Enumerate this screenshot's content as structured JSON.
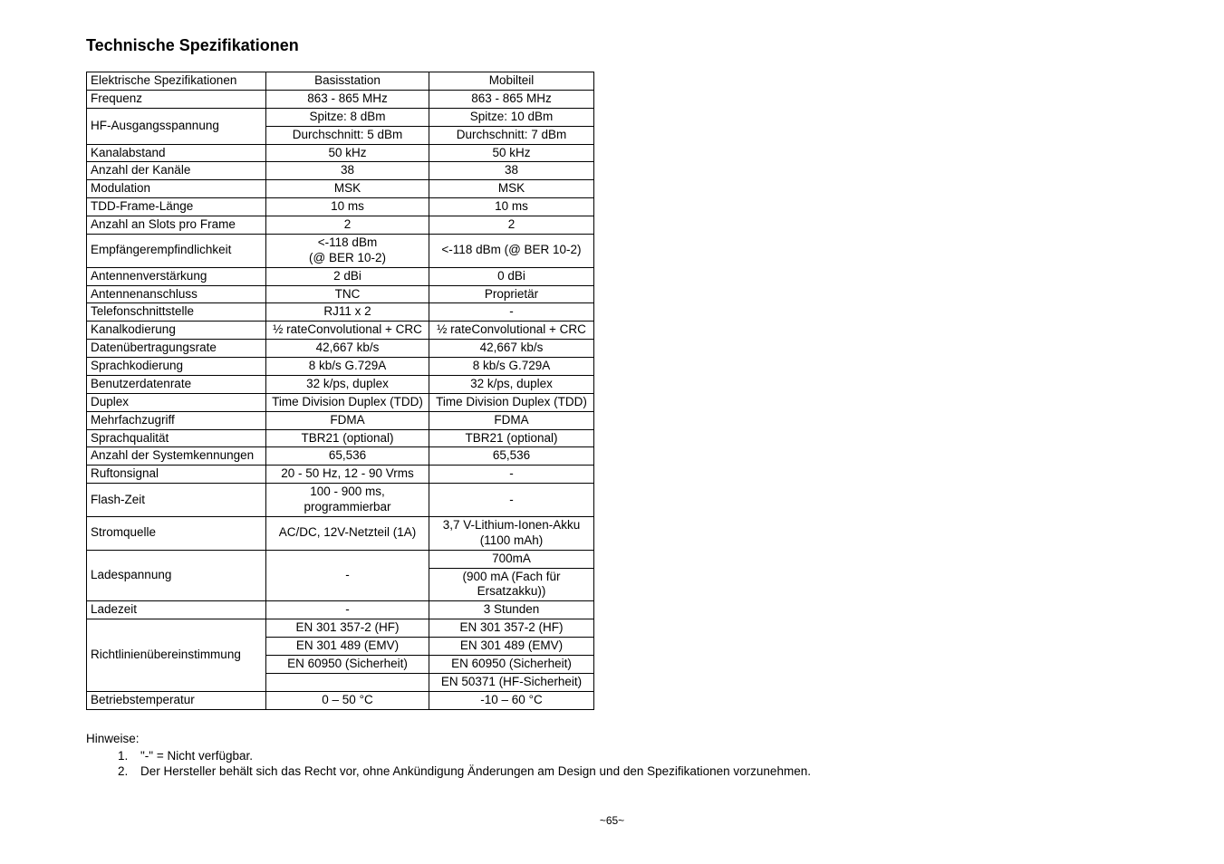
{
  "title": "Technische Spezifikationen",
  "table": {
    "header": [
      "Elektrische Spezifikationen",
      "Basisstation",
      "Mobilteil"
    ],
    "rows": [
      {
        "label": "Frequenz",
        "base": "863 - 865 MHz",
        "mobile": "863 - 865 MHz"
      },
      {
        "label": "HF-Ausgangsspannung",
        "rowspan": 2,
        "base": "Spitze: 8 dBm",
        "mobile": "Spitze: 10 dBm"
      },
      {
        "base": "Durchschnitt: 5 dBm",
        "mobile": "Durchschnitt: 7 dBm"
      },
      {
        "label": "Kanalabstand",
        "base": "50 kHz",
        "mobile": "50 kHz"
      },
      {
        "label": "Anzahl der Kanäle",
        "base": "38",
        "mobile": "38"
      },
      {
        "label": "Modulation",
        "base": "MSK",
        "mobile": "MSK"
      },
      {
        "label": "TDD-Frame-Länge",
        "base": "10 ms",
        "mobile": "10 ms"
      },
      {
        "label": "Anzahl an Slots pro Frame",
        "base": "2",
        "mobile": "2"
      },
      {
        "label": "Empfängerempfindlichkeit",
        "base": "<-118 dBm\n(@ BER 10-2)",
        "mobile": "<-118 dBm (@ BER 10-2)"
      },
      {
        "label": "Antennenverstärkung",
        "base": "2 dBi",
        "mobile": "0 dBi"
      },
      {
        "label": "Antennenanschluss",
        "base": "TNC",
        "mobile": "Proprietär"
      },
      {
        "label": "Telefonschnittstelle",
        "base": "RJ11 x 2",
        "mobile": "-"
      },
      {
        "label": "Kanalkodierung",
        "base": "½ rateConvolutional + CRC",
        "mobile": "½ rateConvolutional + CRC"
      },
      {
        "label": "Datenübertragungsrate",
        "base": "42,667 kb/s",
        "mobile": "42,667 kb/s"
      },
      {
        "label": "Sprachkodierung",
        "base": "8 kb/s G.729A",
        "mobile": "8 kb/s G.729A"
      },
      {
        "label": "Benutzerdatenrate",
        "base": "32 k/ps, duplex",
        "mobile": "32 k/ps, duplex"
      },
      {
        "label": "Duplex",
        "base": "Time Division Duplex (TDD)",
        "mobile": "Time Division Duplex (TDD)"
      },
      {
        "label": "Mehrfachzugriff",
        "base": "FDMA",
        "mobile": "FDMA"
      },
      {
        "label": "Sprachqualität",
        "base": "TBR21 (optional)",
        "mobile": "TBR21 (optional)"
      },
      {
        "label": "Anzahl der Systemkennungen",
        "base": "65,536",
        "mobile": "65,536"
      },
      {
        "label": "Ruftonsignal",
        "base": "20 - 50 Hz, 12 - 90 Vrms",
        "mobile": "-"
      },
      {
        "label": "Flash-Zeit",
        "base": "100 - 900 ms, programmierbar",
        "mobile": "-"
      },
      {
        "label": "Stromquelle",
        "base": "AC/DC, 12V-Netzteil (1A)",
        "mobile": "3,7 V-Lithium-Ionen-Akku (1100 mAh)"
      },
      {
        "label": "Ladespannung",
        "rowspan": 2,
        "base": "-",
        "baseRowspan": 2,
        "mobile": "700mA"
      },
      {
        "mobile": "(900 mA (Fach für Ersatzakku))"
      },
      {
        "label": "Ladezeit",
        "base": "-",
        "mobile": "3 Stunden"
      },
      {
        "label": "Richtlinienübereinstimmung",
        "rowspan": 4,
        "base": "EN 301 357-2 (HF)",
        "mobile": "EN 301 357-2 (HF)"
      },
      {
        "base": "EN 301 489 (EMV)",
        "mobile": "EN 301 489 (EMV)"
      },
      {
        "base": "EN 60950 (Sicherheit)",
        "mobile": "EN 60950 (Sicherheit)"
      },
      {
        "base": "",
        "mobile": "EN 50371 (HF-Sicherheit)"
      },
      {
        "label": "Betriebstemperatur",
        "base": "0 – 50 °C",
        "mobile": "-10 – 60 °C"
      }
    ]
  },
  "notes": {
    "heading": "Hinweise:",
    "items": [
      "\"-\" = Nicht verfügbar.",
      "Der Hersteller behält sich das Recht vor, ohne Ankündigung Änderungen am Design und den Spezifikationen vorzunehmen."
    ]
  },
  "pagenum": "~65~"
}
